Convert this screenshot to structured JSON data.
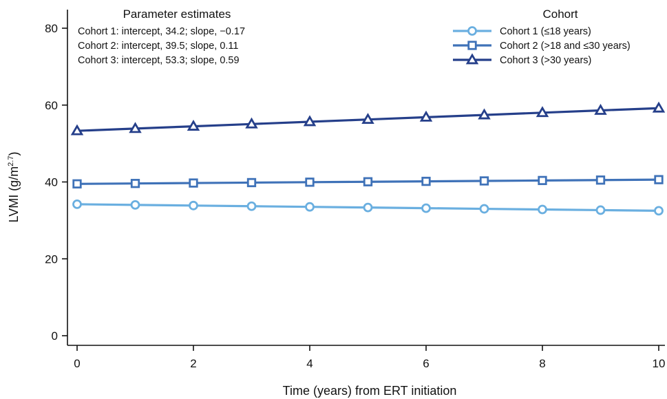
{
  "chart_data": {
    "type": "line",
    "xlabel": "Time (years) from ERT initiation",
    "ylabel": "LVMI (g/m",
    "ylabel_sup": "2.7",
    "ylabel_close": ")",
    "xlim": [
      0,
      10
    ],
    "ylim": [
      0,
      80
    ],
    "x_ticks": [
      0,
      2,
      4,
      6,
      8,
      10
    ],
    "y_ticks": [
      0,
      20,
      40,
      60,
      80
    ],
    "x": [
      0,
      1,
      2,
      3,
      4,
      5,
      6,
      7,
      8,
      9,
      10
    ],
    "grid": false,
    "legend_position": "top-right",
    "legend_title": "Cohort",
    "series": [
      {
        "name": "Cohort 1 (≤18 years)",
        "color": "#6aafe0",
        "marker": "circle",
        "values": [
          34.2,
          34.03,
          33.86,
          33.69,
          33.52,
          33.35,
          33.18,
          33.01,
          32.84,
          32.67,
          32.5
        ]
      },
      {
        "name": "Cohort 2 (>18 and ≤30 years)",
        "color": "#3f72b8",
        "marker": "square",
        "values": [
          39.5,
          39.61,
          39.72,
          39.83,
          39.94,
          40.05,
          40.16,
          40.27,
          40.38,
          40.49,
          40.6
        ]
      },
      {
        "name": "Cohort 3 (>30 years)",
        "color": "#253f8a",
        "marker": "triangle",
        "values": [
          53.3,
          53.89,
          54.48,
          55.07,
          55.66,
          56.25,
          56.84,
          57.43,
          58.02,
          58.61,
          59.2
        ]
      }
    ]
  },
  "estimates": {
    "title": "Parameter estimates",
    "lines": [
      "Cohort 1: intercept, 34.2; slope, −0.17",
      "Cohort 2: intercept, 39.5; slope, 0.11",
      "Cohort 3: intercept, 53.3; slope, 0.59"
    ]
  }
}
